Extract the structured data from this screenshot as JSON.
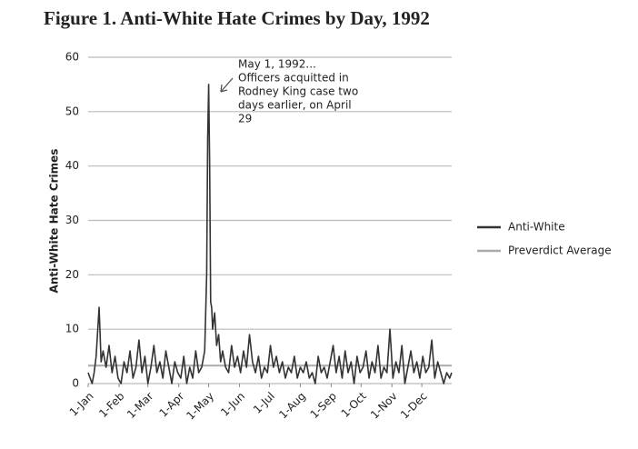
{
  "chart_data": {
    "type": "line",
    "title": "Figure 1.  Anti-White Hate Crimes by Day, 1992",
    "y_label": "Anti-White Hate Crimes",
    "annotation": {
      "lines": [
        "May 1, 1992...",
        "Officers acquitted in",
        "Rodney King case two",
        "days earlier, on April",
        "29"
      ]
    },
    "xlim": [
      1,
      366
    ],
    "xticks": [
      {
        "value": 1,
        "label": "1-Jan"
      },
      {
        "value": 32,
        "label": "1-Feb"
      },
      {
        "value": 61,
        "label": "1-Mar"
      },
      {
        "value": 92,
        "label": "1-Apr"
      },
      {
        "value": 122,
        "label": "1-May"
      },
      {
        "value": 153,
        "label": "1-Jun"
      },
      {
        "value": 183,
        "label": "1-Jul"
      },
      {
        "value": 214,
        "label": "1-Aug"
      },
      {
        "value": 245,
        "label": "1-Sep"
      },
      {
        "value": 275,
        "label": "1-Oct"
      },
      {
        "value": 306,
        "label": "1-Nov"
      },
      {
        "value": 336,
        "label": "1-Dec"
      }
    ],
    "ylim": [
      0,
      60
    ],
    "yticks": [
      0,
      10,
      20,
      30,
      40,
      50,
      60
    ],
    "grid": true,
    "legend": "right",
    "series": [
      {
        "name": "Anti-White",
        "color": "#333333",
        "x": [
          1,
          3,
          5,
          7,
          9,
          12,
          14,
          16,
          19,
          22,
          25,
          28,
          31,
          34,
          37,
          40,
          43,
          46,
          49,
          52,
          55,
          58,
          61,
          64,
          67,
          70,
          73,
          76,
          79,
          82,
          85,
          88,
          91,
          94,
          97,
          100,
          103,
          106,
          109,
          112,
          115,
          118,
          120,
          121,
          122,
          123,
          124,
          125,
          126,
          128,
          130,
          132,
          134,
          136,
          139,
          142,
          145,
          148,
          151,
          154,
          157,
          160,
          163,
          166,
          169,
          172,
          175,
          178,
          181,
          184,
          187,
          190,
          193,
          196,
          199,
          202,
          205,
          208,
          211,
          214,
          217,
          220,
          223,
          226,
          229,
          232,
          235,
          238,
          241,
          244,
          247,
          250,
          253,
          256,
          259,
          262,
          265,
          268,
          271,
          274,
          277,
          280,
          283,
          286,
          289,
          292,
          295,
          298,
          301,
          304,
          307,
          310,
          313,
          316,
          319,
          322,
          325,
          328,
          331,
          334,
          337,
          340,
          343,
          346,
          349,
          352,
          355,
          358,
          361,
          364,
          366
        ],
        "values": [
          2,
          1,
          0,
          2,
          5,
          14,
          4,
          6,
          3,
          7,
          2,
          5,
          1,
          0,
          4,
          2,
          6,
          1,
          3,
          8,
          2,
          5,
          0,
          3,
          7,
          2,
          4,
          1,
          6,
          3,
          0,
          4,
          2,
          1,
          5,
          0,
          3,
          1,
          6,
          2,
          3,
          6,
          20,
          45,
          55,
          40,
          15,
          14,
          10,
          13,
          7,
          9,
          4,
          6,
          3,
          2,
          7,
          3,
          5,
          2,
          6,
          3,
          9,
          4,
          2,
          5,
          1,
          3,
          2,
          7,
          3,
          5,
          2,
          4,
          1,
          3,
          2,
          5,
          1,
          3,
          2,
          4,
          1,
          2,
          0,
          5,
          2,
          3,
          1,
          4,
          7,
          2,
          5,
          1,
          6,
          2,
          4,
          0,
          5,
          2,
          3,
          6,
          1,
          4,
          2,
          7,
          1,
          3,
          2,
          10,
          1,
          4,
          2,
          7,
          0,
          3,
          6,
          2,
          4,
          1,
          5,
          2,
          3,
          8,
          1,
          4,
          2,
          0,
          2,
          1,
          2
        ]
      },
      {
        "name": "Preverdict Average",
        "color": "#aaaaaa",
        "x": [
          1,
          366
        ],
        "values": [
          3.3,
          3.3
        ]
      }
    ]
  }
}
